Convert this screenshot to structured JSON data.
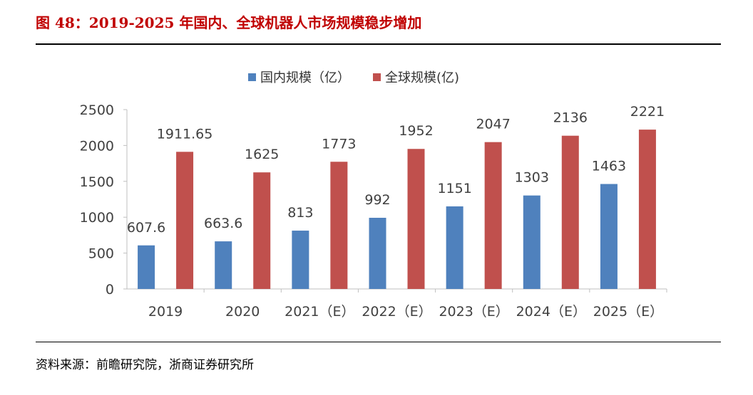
{
  "title": "图 48：2019-2025 年国内、全球机器人市场规模稳步增加",
  "source": "资料来源：前瞻研究院，浙商证券研究所",
  "chart_data": {
    "type": "bar",
    "categories": [
      "2019",
      "2020",
      "2021（E）",
      "2022（E）",
      "2023（E）",
      "2024（E）",
      "2025（E）"
    ],
    "series": [
      {
        "name": "国内规模（亿）",
        "color": "#4f81bd",
        "values": [
          607.6,
          663.6,
          813,
          992,
          1151,
          1303,
          1463
        ],
        "labels": [
          "607.6",
          "663.6",
          "813",
          "992",
          "1151",
          "1303",
          "1463"
        ]
      },
      {
        "name": "全球规模(亿)",
        "color": "#c0504d",
        "values": [
          1911.65,
          1625,
          1773,
          1952,
          2047,
          2136,
          2221
        ],
        "labels": [
          "1911.65",
          "1625",
          "1773",
          "1952",
          "2047",
          "2136",
          "2221"
        ]
      }
    ],
    "yticks": [
      0,
      500,
      1000,
      1500,
      2000,
      2500
    ],
    "ylim": [
      0,
      2500
    ],
    "xlabel": "",
    "ylabel": "",
    "legend": "top-center",
    "grid": false
  }
}
